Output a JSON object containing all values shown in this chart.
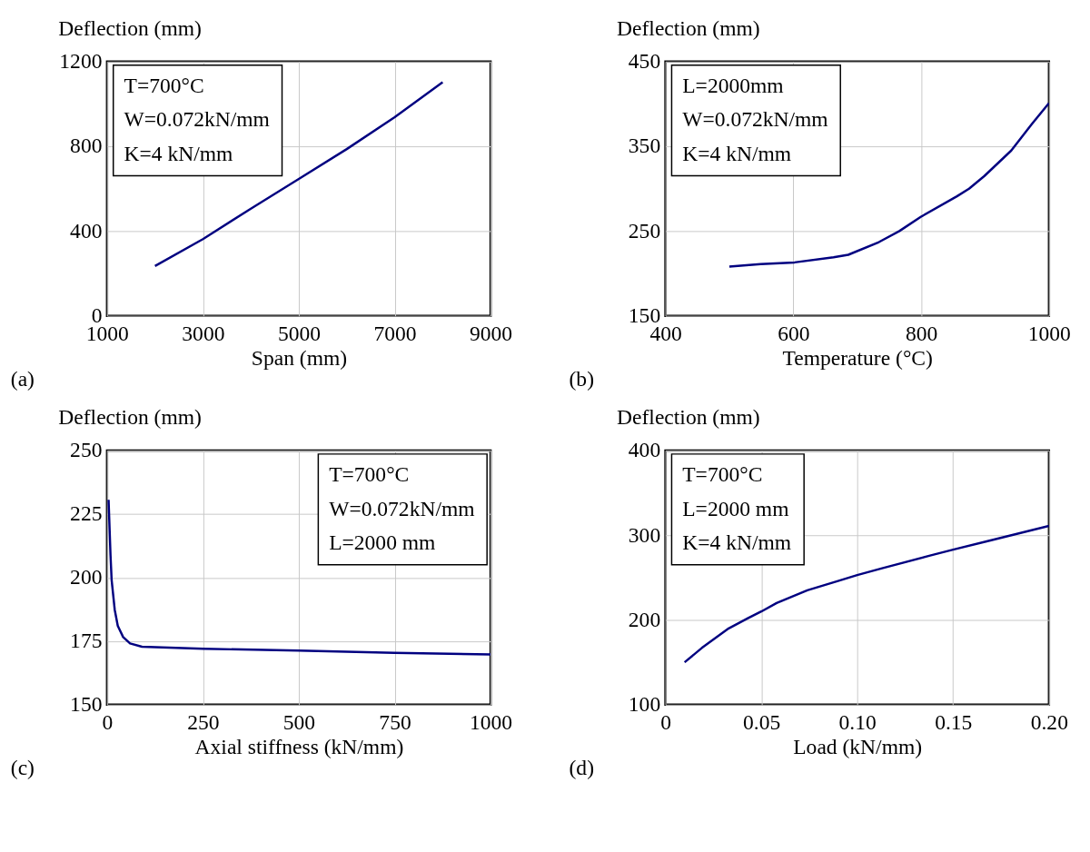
{
  "chart_data": [
    {
      "type": "line",
      "xlabel": "Span (mm)",
      "ylabel": "Deflection (mm)",
      "color": "#000080",
      "grid": true,
      "x": [
        2000,
        3000,
        4000,
        5000,
        6000,
        7000,
        8000
      ],
      "values": [
        235,
        362,
        506,
        646,
        787,
        938,
        1103
      ],
      "xlim": [
        1000,
        9000
      ],
      "xticks": [
        1000,
        3000,
        5000,
        7000,
        9000
      ],
      "ylim": [
        0,
        1200
      ],
      "yticks": [
        0,
        400,
        800,
        1200
      ],
      "annotations": [
        "T=700°C",
        "W=0.072kN/mm",
        "K=4 kN/mm",
        "(a)"
      ]
    },
    {
      "type": "line",
      "xlabel": "Temperature (°C)",
      "ylabel": "Deflection (mm)",
      "color": "#000080",
      "grid": true,
      "x": [
        500,
        549,
        602,
        663,
        686,
        734,
        766,
        800,
        856,
        875,
        899,
        941,
        973,
        1000
      ],
      "values": [
        208,
        211,
        213,
        219,
        222,
        237,
        250,
        267,
        291,
        300,
        315,
        345,
        376,
        401
      ],
      "xlim": [
        400,
        1000
      ],
      "xticks": [
        400,
        600,
        800,
        1000
      ],
      "ylim": [
        150,
        450
      ],
      "yticks": [
        150,
        250,
        350,
        450
      ],
      "annotations": [
        "L=2000mm",
        "W=0.072kN/mm",
        "K=4 kN/mm",
        "(b)"
      ]
    },
    {
      "type": "line",
      "xlabel": "Axial stiffness (kN/mm)",
      "ylabel": "Deflection (mm)",
      "color": "#000080",
      "grid": true,
      "x": [
        4,
        9,
        12,
        20,
        28,
        42,
        60,
        91,
        251,
        500,
        749,
        1000
      ],
      "values": [
        230.6,
        209,
        199,
        187.4,
        181,
        176.6,
        174.1,
        172.8,
        172.0,
        171.3,
        170.4,
        169.8
      ],
      "xlim": [
        0,
        1000
      ],
      "xticks": [
        0,
        250,
        500,
        750,
        1000
      ],
      "ylim": [
        150,
        250
      ],
      "yticks": [
        150,
        175,
        200,
        225,
        250
      ],
      "annotations": [
        "T=700°C",
        "W=0.072kN/mm",
        "L=2000 mm",
        "(c)"
      ]
    },
    {
      "type": "line",
      "xlabel": "Load (kN/mm)",
      "ylabel": "Deflection (mm)",
      "color": "#000080",
      "grid": true,
      "x": [
        0.01,
        0.019,
        0.033,
        0.043,
        0.05,
        0.058,
        0.074,
        0.09,
        0.1,
        0.113,
        0.138,
        0.15,
        0.168,
        0.2
      ],
      "values": [
        150,
        167,
        190,
        202,
        210,
        220,
        235,
        246,
        253,
        261,
        276,
        283,
        293,
        311
      ],
      "xlim": [
        0,
        0.2
      ],
      "xticks": [
        0,
        0.05,
        {
          "value": 0.1,
          "label": "0.10"
        },
        0.15,
        {
          "value": 0.2,
          "label": "0.20"
        }
      ],
      "ylim": [
        100,
        400
      ],
      "yticks": [
        100,
        200,
        300,
        400
      ],
      "annotations": [
        "T=700°C",
        "L=2000 mm",
        "K=4 kN/mm",
        "(d)"
      ]
    }
  ]
}
